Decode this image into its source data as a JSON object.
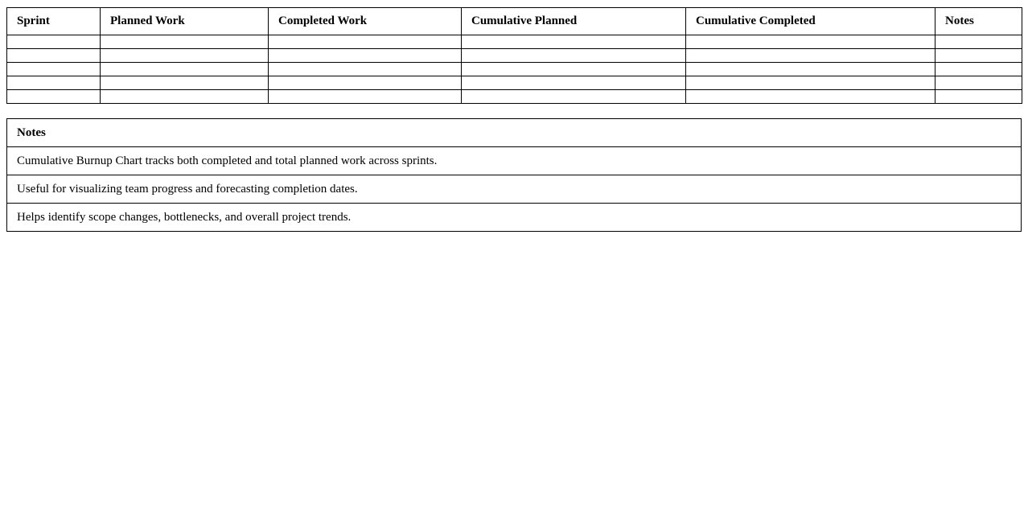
{
  "sprint_table": {
    "columns": [
      "Sprint",
      "Planned Work",
      "Completed Work",
      "Cumulative Planned",
      "Cumulative Completed",
      "Notes"
    ]
  },
  "notes_table": {
    "title": "Notes",
    "rows": [
      "Cumulative Burnup Chart tracks both completed and total planned work across sprints.",
      "Useful for visualizing team progress and forecasting completion dates.",
      "Helps identify scope changes, bottlenecks, and overall project trends."
    ]
  }
}
